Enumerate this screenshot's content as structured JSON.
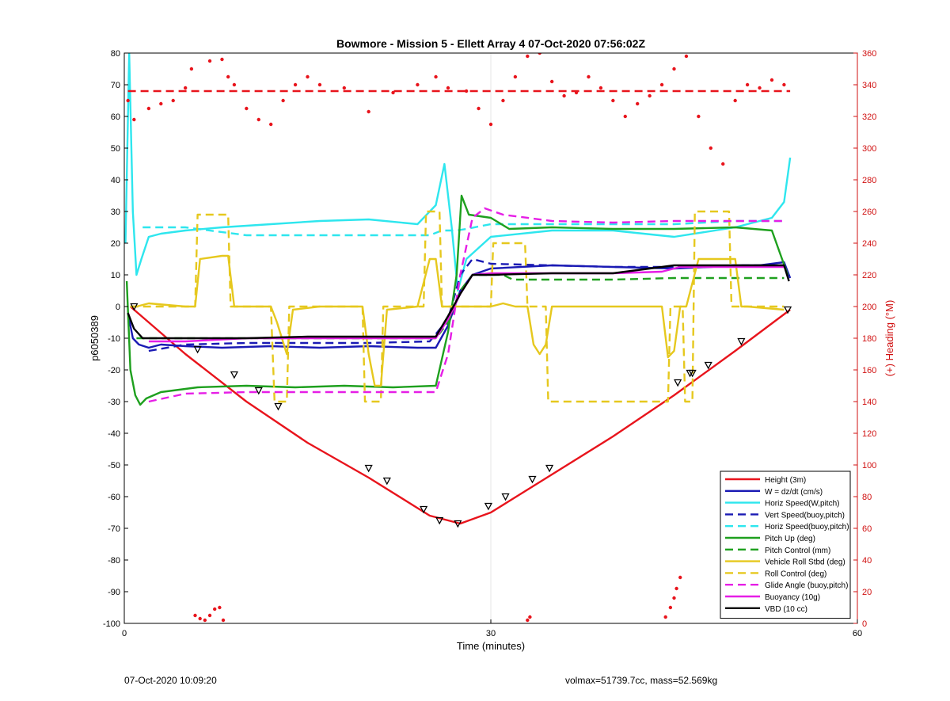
{
  "footer": {
    "timestamp": "07-Oct-2020 10:09:20",
    "stats": "volmax=51739.7cc, mass=52.569kg"
  },
  "chart_data": {
    "type": "line",
    "title": "Bowmore - Mission 5 - Ellett Array 4 07-Oct-2020 07:56:02Z",
    "xlabel": "Time (minutes)",
    "ylabel": "p6050389",
    "y2label": "(+) Heading (°M)",
    "xlim": [
      0,
      60
    ],
    "ylim": [
      -100,
      80
    ],
    "y2lim": [
      0,
      360
    ],
    "xticks": [
      0,
      30,
      60
    ],
    "yticks": [
      -100,
      -90,
      -80,
      -70,
      -60,
      -50,
      -40,
      -30,
      -20,
      -10,
      0,
      10,
      20,
      30,
      40,
      50,
      60,
      70,
      80
    ],
    "y2ticks": [
      0,
      20,
      40,
      60,
      80,
      100,
      120,
      140,
      160,
      180,
      200,
      220,
      240,
      260,
      280,
      300,
      320,
      340,
      360
    ],
    "grid": "x only",
    "legend_position": "bottom-right",
    "colors": {
      "red": "#e8141c",
      "blue": "#1a1ab4",
      "cyan": "#2ee6ee",
      "green": "#1ea01e",
      "yellow": "#e6c81e",
      "magenta": "#e61ee6",
      "black": "#000000",
      "heading_axis": "#d01010"
    },
    "series": [
      {
        "name": "Height (3m)",
        "color": "#e8141c",
        "dash": "solid",
        "axis": "left",
        "x": [
          0.5,
          5,
          10,
          15,
          20,
          25,
          27.5,
          30,
          35,
          40,
          45,
          50,
          54.5
        ],
        "y": [
          0,
          -15,
          -30,
          -43,
          -54,
          -66,
          -68.5,
          -65,
          -53,
          -41,
          -28,
          -14,
          -1
        ]
      },
      {
        "name": "W = dz/dt (cm/s)",
        "color": "#1a1ab4",
        "dash": "solid",
        "axis": "left",
        "x": [
          0.3,
          0.7,
          1.2,
          2,
          3,
          5,
          8,
          12,
          16,
          20,
          24,
          25.5,
          26.5,
          27.5,
          28.5,
          30,
          35,
          40,
          45,
          48,
          50,
          52,
          54,
          54.5
        ],
        "y": [
          -2,
          -10,
          -12,
          -13,
          -12,
          -12.5,
          -13,
          -12.5,
          -13,
          -12.5,
          -13,
          -13,
          -6,
          5,
          10,
          12,
          13,
          12.5,
          12,
          12.5,
          13,
          13,
          14,
          9
        ]
      },
      {
        "name": "Horiz Speed(W,pitch)",
        "color": "#2ee6ee",
        "dash": "solid",
        "axis": "left",
        "x": [
          0.1,
          0.4,
          0.7,
          1.0,
          1.4,
          2,
          3,
          5,
          8,
          12,
          16,
          20,
          24,
          25.5,
          26.2,
          26.8,
          27.3,
          28,
          30,
          35,
          40,
          45,
          50,
          53,
          54,
          54.5
        ],
        "y": [
          20,
          80,
          30,
          10,
          15,
          22,
          23,
          24,
          25,
          26,
          27,
          27.5,
          26,
          32,
          45,
          25,
          5,
          15,
          22,
          24,
          24,
          22,
          25,
          28,
          33,
          47
        ]
      },
      {
        "name": "Vert Speed(buoy,pitch)",
        "color": "#1a1ab4",
        "dash": "dashed",
        "axis": "left",
        "x": [
          2,
          5,
          10,
          15,
          20,
          25,
          26.5,
          27.5,
          28.5,
          30,
          35,
          40,
          45,
          50,
          54
        ],
        "y": [
          -14,
          -12,
          -11.5,
          -11.5,
          -11.5,
          -11,
          -4,
          10,
          15,
          13.5,
          13,
          12.5,
          12.5,
          13,
          13
        ]
      },
      {
        "name": "Horiz Speed(buoy,pitch)",
        "color": "#2ee6ee",
        "dash": "dashed",
        "axis": "left",
        "x": [
          1.5,
          5,
          10,
          15,
          20,
          25,
          26,
          27.2,
          28,
          30,
          35,
          40,
          45,
          50,
          54
        ],
        "y": [
          25,
          25,
          22.5,
          22.5,
          22.5,
          22.5,
          24,
          24,
          24.5,
          26,
          26,
          26,
          26,
          27,
          27
        ]
      },
      {
        "name": "Pitch Up (deg)",
        "color": "#1ea01e",
        "dash": "solid",
        "axis": "left",
        "x": [
          0.2,
          0.5,
          0.9,
          1.3,
          1.8,
          3,
          6,
          10,
          14,
          18,
          22,
          25.5,
          26.5,
          27.2,
          27.6,
          28.2,
          30,
          31.5,
          35,
          40,
          45,
          50,
          53,
          54.3
        ],
        "y": [
          8,
          -20,
          -28,
          -31,
          -29,
          -27,
          -25.5,
          -25,
          -25.5,
          -25,
          -25.5,
          -25,
          -8,
          10,
          35,
          29,
          28,
          24.5,
          25,
          24.5,
          24.5,
          25,
          24,
          10
        ]
      },
      {
        "name": "Pitch Control (mm)",
        "color": "#1ea01e",
        "dash": "dashed",
        "axis": "left",
        "x": [
          1,
          5,
          10,
          15,
          20,
          25.5,
          26.5,
          27.5,
          28.5,
          31,
          31.8,
          35,
          40,
          45,
          50,
          54
        ],
        "y": [
          -10,
          -10,
          -10,
          -10,
          -10,
          -10,
          -5,
          5,
          10,
          10,
          8.5,
          8.5,
          8.5,
          9,
          9,
          9
        ]
      },
      {
        "name": "Vehicle Roll Stbd (deg)",
        "color": "#e6c81e",
        "dash": "solid",
        "axis": "left",
        "x": [
          0.5,
          1,
          2,
          5,
          5.8,
          6.2,
          8,
          8.5,
          9,
          12,
          12.5,
          13.3,
          13.8,
          16,
          19,
          19.5,
          20,
          20.5,
          21,
          21.5,
          24,
          25,
          25.5,
          26,
          26.5,
          27,
          30,
          31,
          32,
          33,
          33.5,
          34,
          34.5,
          35,
          38,
          41,
          44,
          44.5,
          45,
          45.5,
          46,
          47,
          48,
          49,
          50,
          50.5,
          51,
          54
        ],
        "y": [
          0,
          0,
          1,
          0,
          0,
          15,
          16,
          16,
          0,
          0,
          -5,
          -15,
          -1,
          0,
          0,
          0,
          -15,
          -25,
          -25,
          -1,
          0,
          15,
          15,
          0,
          0,
          0,
          0,
          1,
          0,
          0,
          -12,
          -15,
          -12,
          0,
          0,
          0,
          0,
          -16,
          -14,
          0,
          0,
          15,
          15,
          15,
          15,
          0,
          0,
          -1
        ]
      },
      {
        "name": "Roll Control (deg)",
        "color": "#e6c81e",
        "dash": "dashed",
        "axis": "left",
        "x": [
          0.5,
          5.8,
          6,
          8.5,
          8.7,
          12,
          12.3,
          13.3,
          13.5,
          19.5,
          19.7,
          21,
          21.2,
          24.5,
          24.7,
          25.8,
          26,
          30,
          30.2,
          32.8,
          33,
          34.5,
          34.7,
          44.5,
          44.7,
          45.7,
          45.9,
          46.5,
          46.7,
          49.5,
          49.7,
          54
        ],
        "y": [
          0,
          0,
          29,
          29,
          0,
          0,
          -30,
          -30,
          0,
          0,
          -30,
          -30,
          0,
          0,
          30,
          30,
          0,
          0,
          20,
          20,
          0,
          0,
          -30,
          -30,
          0,
          0,
          -30,
          -30,
          30,
          30,
          0,
          0
        ]
      },
      {
        "name": "Glide Angle (buoy,pitch)",
        "color": "#e61ee6",
        "dash": "dashed",
        "axis": "left",
        "x": [
          2,
          5,
          10,
          15,
          20,
          25.5,
          26.5,
          27.5,
          28.5,
          29.5,
          31,
          35,
          40,
          45,
          50,
          54
        ],
        "y": [
          -30,
          -27.5,
          -27,
          -27,
          -27,
          -27,
          -15,
          10,
          28,
          31,
          29,
          27,
          26.5,
          27,
          27,
          27
        ]
      },
      {
        "name": "Buoyancy (10g)",
        "color": "#e61ee6",
        "dash": "solid",
        "axis": "left",
        "x": [
          2,
          5,
          10,
          15,
          20,
          25.5,
          26.5,
          27.5,
          28.5,
          30,
          35,
          40,
          44,
          45.5,
          50,
          54
        ],
        "y": [
          -11,
          -11,
          -10,
          -10,
          -10,
          -10,
          -4,
          4,
          10,
          10.5,
          10.5,
          10.5,
          11,
          12.5,
          12.5,
          12.5
        ]
      },
      {
        "name": "VBD (10 cc)",
        "color": "#000000",
        "dash": "solid",
        "axis": "left",
        "x": [
          0.3,
          0.8,
          1.5,
          5,
          10,
          15,
          20,
          25.5,
          26.5,
          27.5,
          28.5,
          30,
          35,
          40,
          45,
          50,
          54,
          54.4
        ],
        "y": [
          -2,
          -7,
          -10,
          -10,
          -10,
          -9.5,
          -9.5,
          -9.5,
          -3,
          4,
          10,
          10,
          10.5,
          10.5,
          13,
          13,
          13,
          8
        ]
      },
      {
        "name": "Heading",
        "color": "#e8141c",
        "dash": "dotted",
        "axis": "right",
        "x": [
          0.3,
          0.8,
          2,
          3,
          4,
          5,
          5.5,
          6,
          7,
          8,
          8.5,
          9,
          10,
          11,
          12,
          13,
          14,
          15,
          16,
          18,
          20,
          22,
          24,
          25.5,
          26.5,
          28,
          29,
          30,
          31,
          32,
          33,
          34,
          35,
          36,
          37,
          38,
          39,
          40,
          41,
          42,
          43,
          44,
          45,
          46,
          47,
          48,
          49,
          50,
          51,
          52,
          53,
          54
        ],
        "y": [
          330,
          318,
          325,
          328,
          330,
          338,
          350,
          362,
          355,
          356,
          345,
          340,
          325,
          318,
          315,
          330,
          340,
          345,
          340,
          338,
          323,
          335,
          340,
          345,
          338,
          336,
          325,
          315,
          330,
          345,
          358,
          360,
          342,
          333,
          335,
          345,
          338,
          330,
          320,
          328,
          333,
          340,
          350,
          358,
          320,
          300,
          290,
          330,
          340,
          338,
          343,
          340
        ]
      },
      {
        "name": "Heading ref",
        "color": "#e8141c",
        "dash": "dashed",
        "axis": "right",
        "x": [
          0.3,
          54.5
        ],
        "y": [
          336,
          336
        ]
      }
    ],
    "triangle_markers": {
      "x": [
        0.8,
        6,
        9,
        11,
        12.6,
        20,
        21.5,
        24.5,
        25.8,
        27.3,
        29.8,
        31.2,
        33.4,
        34.8,
        45.3,
        46.3,
        46.5,
        47.8,
        50.5,
        54.3
      ],
      "y": [
        0,
        -13.5,
        -21.5,
        -26.5,
        -31.5,
        -51,
        -55,
        -64,
        -67.5,
        -68.5,
        -63,
        -60,
        -54.5,
        -51,
        -24,
        -21,
        -21,
        -18.5,
        -11,
        -1
      ]
    },
    "heading_low_markers": {
      "x": [
        5.8,
        6.2,
        6.6,
        7.0,
        7.4,
        7.8,
        8.1,
        33.0,
        33.2,
        44.3,
        44.7,
        45.0,
        45.2,
        45.5
      ],
      "y": [
        5,
        3,
        2,
        5,
        9,
        10,
        2,
        2,
        4,
        4,
        10,
        16,
        22,
        29
      ]
    }
  }
}
